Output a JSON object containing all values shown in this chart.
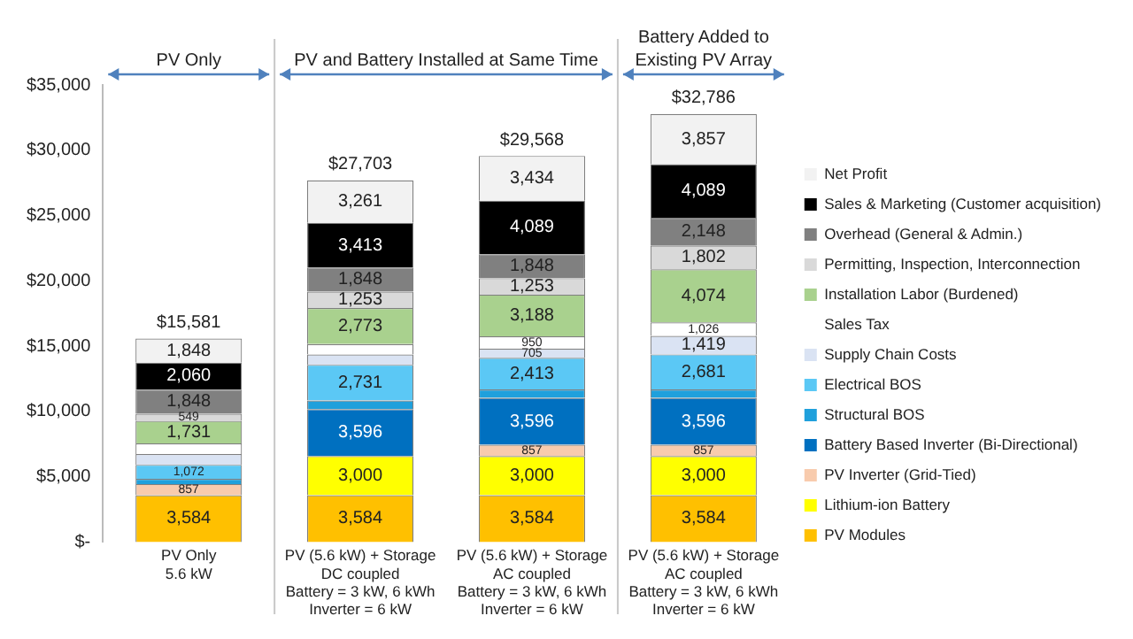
{
  "chart_data": {
    "type": "bar",
    "stacked": true,
    "categories": [
      "PV Only\n5.6 kW",
      "PV (5.6 kW) + Storage\nDC coupled\nBattery = 3 kW, 6 kWh\nInverter = 6 kW",
      "PV (5.6 kW) + Storage\nAC coupled\nBattery = 3 kW, 6 kWh\nInverter = 6 kW",
      "PV (5.6 kW) + Storage\nAC coupled\nBattery = 3 kW, 6 kWh\nInverter = 6 kW"
    ],
    "series": [
      {
        "name": "PV Modules",
        "color": "#ffc000",
        "values": [
          3584,
          3584,
          3584,
          3584
        ],
        "value_labels": [
          "3,584",
          "3,584",
          "3,584",
          "3,584"
        ]
      },
      {
        "name": "Lithium-ion Battery",
        "color": "#ffff00",
        "values": [
          0,
          3000,
          3000,
          3000
        ],
        "value_labels": [
          null,
          "3,000",
          "3,000",
          "3,000"
        ]
      },
      {
        "name": "PV Inverter (Grid-Tied)",
        "color": "#f8cbad",
        "values": [
          857,
          0,
          857,
          857
        ],
        "value_labels": [
          "857",
          null,
          "857",
          "857"
        ]
      },
      {
        "name": "Battery Based Inverter (Bi-Directional)",
        "color": "#0070c0",
        "values": [
          0,
          3596,
          3596,
          3596
        ],
        "value_labels": [
          null,
          "3,596",
          "3,596",
          "3,596"
        ]
      },
      {
        "name": "Structural BOS",
        "color": "#1fa0dc",
        "values": [
          400,
          660,
          650,
          650
        ],
        "value_labels": [
          null,
          null,
          null,
          null
        ]
      },
      {
        "name": "Electrical BOS",
        "color": "#5bc8f5",
        "values": [
          1072,
          2731,
          2413,
          2681
        ],
        "value_labels": [
          "1,072",
          "2,731",
          "2,413",
          "2,681"
        ]
      },
      {
        "name": "Supply Chain Costs",
        "color": "#dae3f3",
        "values": [
          820,
          790,
          705,
          1419
        ],
        "value_labels": [
          null,
          null,
          "705",
          "1,419"
        ]
      },
      {
        "name": "Sales Tax",
        "color": "#ffffff",
        "values": [
          812,
          790,
          950,
          1026
        ],
        "value_labels": [
          null,
          null,
          "950",
          "1,026"
        ]
      },
      {
        "name": "Installation Labor (Burdened)",
        "color": "#a9d18e",
        "values": [
          1731,
          2773,
          3188,
          4074
        ],
        "value_labels": [
          "1,731",
          "2,773",
          "3,188",
          "4,074"
        ]
      },
      {
        "name": "Permitting, Inspection, Interconnection",
        "color": "#d9d9d9",
        "values": [
          549,
          1253,
          1253,
          1802
        ],
        "value_labels": [
          "549",
          "1,253",
          "1,253",
          "1,802"
        ]
      },
      {
        "name": "Overhead (General & Admin.)",
        "color": "#808080",
        "values": [
          1848,
          1848,
          1848,
          2148
        ],
        "value_labels": [
          "1,848",
          "1,848",
          "1,848",
          "2,148"
        ]
      },
      {
        "name": "Sales & Marketing (Customer acquisition)",
        "color": "#000000",
        "values": [
          2060,
          3413,
          4089,
          4089
        ],
        "value_labels": [
          "2,060",
          "3,413",
          "4,089",
          "4,089"
        ]
      },
      {
        "name": "Net Profit",
        "color": "#f2f2f2",
        "values": [
          1848,
          3261,
          3434,
          3857
        ],
        "value_labels": [
          "1,848",
          "3,261",
          "3,434",
          "3,857"
        ]
      }
    ],
    "totals": [
      "$15,581",
      "$27,703",
      "$29,568",
      "$32,786"
    ],
    "ylim": [
      0,
      35000
    ],
    "yticks": [
      {
        "value": 0,
        "label": "$-"
      },
      {
        "value": 5000,
        "label": "$5,000"
      },
      {
        "value": 10000,
        "label": "$10,000"
      },
      {
        "value": 15000,
        "label": "$15,000"
      },
      {
        "value": 20000,
        "label": "$20,000"
      },
      {
        "value": 25000,
        "label": "$25,000"
      },
      {
        "value": 30000,
        "label": "$30,000"
      },
      {
        "value": 35000,
        "label": "$35,000"
      }
    ],
    "grid": false,
    "legend": "right",
    "annotations": [
      "PV Only",
      "PV and Battery Installed at Same Time",
      "Battery Added to Existing PV Array"
    ]
  }
}
